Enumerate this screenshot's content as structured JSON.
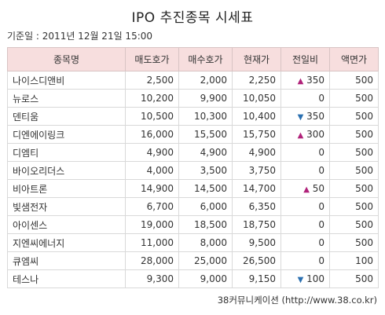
{
  "title": "IPO 추진종목 시세표",
  "base_date": "기준일 : 2011년 12월 21일 15:00",
  "headers": [
    "종목명",
    "매도호가",
    "매수호가",
    "현재가",
    "전일비",
    "액면가"
  ],
  "rows": [
    {
      "name": "나이스디앤비",
      "sell": "2,500",
      "buy": "2,000",
      "current": "2,250",
      "dir": "up",
      "change": "350",
      "face": "500"
    },
    {
      "name": "뉴로스",
      "sell": "10,200",
      "buy": "9,900",
      "current": "10,050",
      "dir": "",
      "change": "0",
      "face": "500"
    },
    {
      "name": "덴티움",
      "sell": "10,500",
      "buy": "10,300",
      "current": "10,400",
      "dir": "down",
      "change": "350",
      "face": "500"
    },
    {
      "name": "디엔에이링크",
      "sell": "16,000",
      "buy": "15,500",
      "current": "15,750",
      "dir": "up",
      "change": "300",
      "face": "500"
    },
    {
      "name": "디엠티",
      "sell": "4,900",
      "buy": "4,900",
      "current": "4,900",
      "dir": "",
      "change": "0",
      "face": "500"
    },
    {
      "name": "바이오리더스",
      "sell": "4,000",
      "buy": "3,500",
      "current": "3,750",
      "dir": "",
      "change": "0",
      "face": "500"
    },
    {
      "name": "비아트론",
      "sell": "14,900",
      "buy": "14,500",
      "current": "14,700",
      "dir": "up",
      "change": "50",
      "face": "500"
    },
    {
      "name": "빛샘전자",
      "sell": "6,700",
      "buy": "6,000",
      "current": "6,350",
      "dir": "",
      "change": "0",
      "face": "500"
    },
    {
      "name": "아이센스",
      "sell": "19,000",
      "buy": "18,500",
      "current": "18,750",
      "dir": "",
      "change": "0",
      "face": "500"
    },
    {
      "name": "지엔씨에너지",
      "sell": "11,000",
      "buy": "8,000",
      "current": "9,500",
      "dir": "",
      "change": "0",
      "face": "500"
    },
    {
      "name": "큐엠씨",
      "sell": "28,000",
      "buy": "25,000",
      "current": "26,500",
      "dir": "",
      "change": "0",
      "face": "100"
    },
    {
      "name": "테스나",
      "sell": "9,300",
      "buy": "9,000",
      "current": "9,150",
      "dir": "down",
      "change": "100",
      "face": "500"
    }
  ],
  "footer": "38커뮤니케이션 (http://www.38.co.kr)",
  "colors": {
    "up": "#b0227a",
    "down": "#2a6fb0",
    "header_bg": "#f7dede"
  }
}
